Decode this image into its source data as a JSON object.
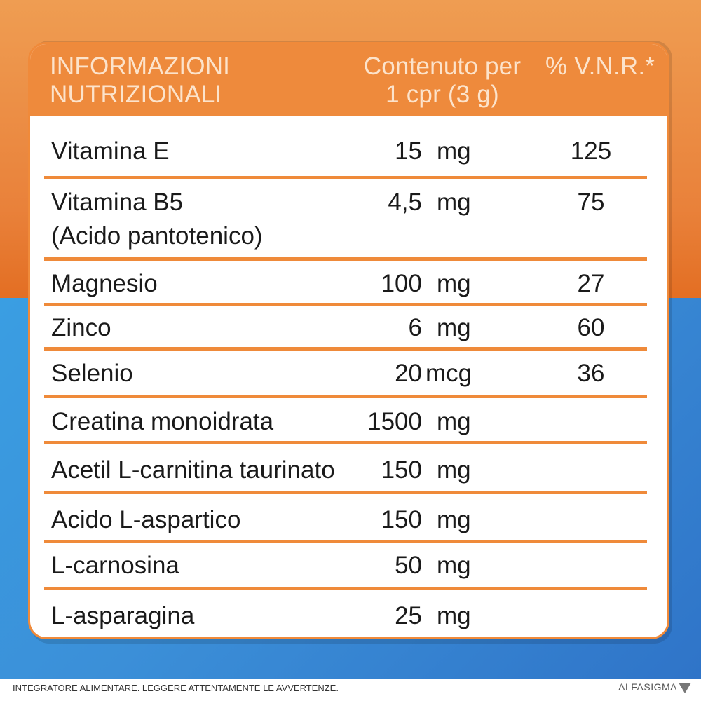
{
  "header": {
    "col1_line1": "INFORMAZIONI",
    "col1_line2": "NUTRIZIONALI",
    "col2_line1": "Contenuto per",
    "col2_line2": "1 cpr (3 g)",
    "col3": "% V.N.R.*"
  },
  "rows": [
    {
      "name": "Vitamina E",
      "qty": "15",
      "unit": "mg",
      "vnr": "125"
    },
    {
      "name": "Vitamina B5",
      "name2": "(Acido pantotenico)",
      "qty": "4,5",
      "unit": "mg",
      "vnr": "75"
    },
    {
      "name": "Magnesio",
      "qty": "100",
      "unit": "mg",
      "vnr": "27"
    },
    {
      "name": "Zinco",
      "qty": "6",
      "unit": "mg",
      "vnr": "60"
    },
    {
      "name": "Selenio",
      "qty": "20",
      "unit": "mcg",
      "vnr": "36"
    },
    {
      "name": "Creatina monoidrata",
      "qty": "1500",
      "unit": "mg",
      "vnr": ""
    },
    {
      "name": "Acetil L-carnitina taurinato",
      "qty": "150",
      "unit": "mg",
      "vnr": ""
    },
    {
      "name": "Acido L-aspartico",
      "qty": "150",
      "unit": "mg",
      "vnr": ""
    },
    {
      "name": "L-carnosina",
      "qty": "50",
      "unit": "mg",
      "vnr": ""
    },
    {
      "name": "L-asparagina",
      "qty": "25",
      "unit": "mg",
      "vnr": ""
    }
  ],
  "footer": {
    "note": "INTEGRATORE ALIMENTARE. LEGGERE ATTENTAMENTE LE AVVERTENZE.",
    "brand": "ALFASIGMA"
  },
  "colors": {
    "orange": "#ee8a3c",
    "blue": "#3b8fd8",
    "header_text": "#fce3cb"
  }
}
